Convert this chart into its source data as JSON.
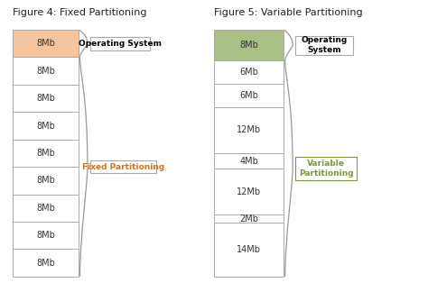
{
  "fig4_title": "Figure 4: Fixed Partitioning",
  "fig5_title": "Figure 5: Variable Partitioning",
  "fig4_segments": [
    {
      "label": "8Mb",
      "color": "#f5c5a0",
      "edge": "#aaaaaa"
    },
    {
      "label": "8Mb",
      "color": "#ffffff",
      "edge": "#aaaaaa"
    },
    {
      "label": "8Mb",
      "color": "#ffffff",
      "edge": "#aaaaaa"
    },
    {
      "label": "8Mb",
      "color": "#ffffff",
      "edge": "#aaaaaa"
    },
    {
      "label": "8Mb",
      "color": "#ffffff",
      "edge": "#aaaaaa"
    },
    {
      "label": "8Mb",
      "color": "#ffffff",
      "edge": "#aaaaaa"
    },
    {
      "label": "8Mb",
      "color": "#ffffff",
      "edge": "#aaaaaa"
    },
    {
      "label": "8Mb",
      "color": "#ffffff",
      "edge": "#aaaaaa"
    },
    {
      "label": "8Mb",
      "color": "#ffffff",
      "edge": "#aaaaaa"
    }
  ],
  "fig5_segments": [
    {
      "label": "8Mb",
      "color": "#a8bf85",
      "edge": "#aaaaaa",
      "units": 8
    },
    {
      "label": "6Mb",
      "color": "#ffffff",
      "edge": "#aaaaaa",
      "units": 6
    },
    {
      "label": "6Mb",
      "color": "#ffffff",
      "edge": "#aaaaaa",
      "units": 6
    },
    {
      "label": "12Mb",
      "color": "#ffffff",
      "edge": "#aaaaaa",
      "units": 12
    },
    {
      "label": "4Mb",
      "color": "#ffffff",
      "edge": "#aaaaaa",
      "units": 4
    },
    {
      "label": "12Mb",
      "color": "#ffffff",
      "edge": "#aaaaaa",
      "units": 12
    },
    {
      "label": "2Mb",
      "color": "#ffffff",
      "edge": "#aaaaaa",
      "units": 2
    },
    {
      "label": "14Mb",
      "color": "#ffffff",
      "edge": "#aaaaaa",
      "units": 14
    }
  ],
  "fig4_os_label": "Operating System",
  "fig4_fp_label": "Fixed Partitioning",
  "fig5_os_label": "Operating\nSystem",
  "fig5_vp_label": "Variable\nPartitioning",
  "os_text_color": "#000000",
  "fp_text_color": "#d4721a",
  "vp_text_color": "#7a9a35",
  "bg_color": "#ffffff",
  "title_fontsize": 8,
  "segment_fontsize": 7
}
